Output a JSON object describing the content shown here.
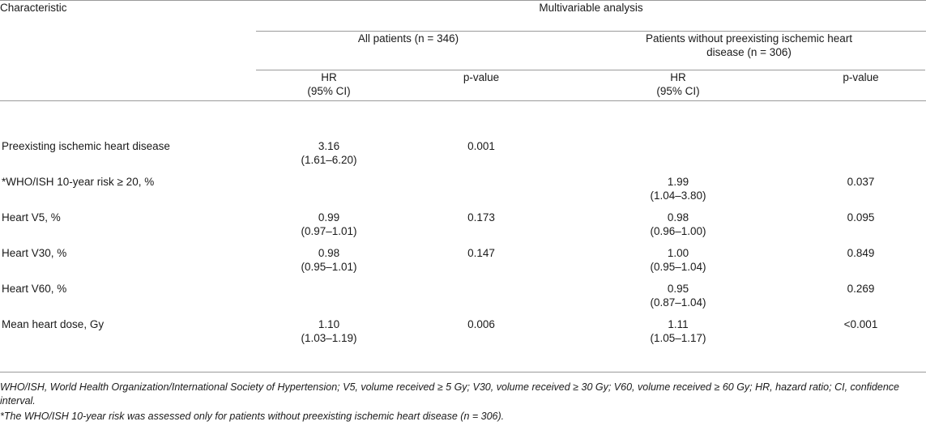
{
  "table": {
    "characteristic_header": "Characteristic",
    "multivariable_header": "Multivariable analysis",
    "group1_header": "All patients (n = 346)",
    "group2_header_line1": "Patients without preexisting ischemic heart",
    "group2_header_line2": "disease (n = 306)",
    "hr_label": "HR",
    "ci_label": "(95% CI)",
    "p_label": "p-value",
    "rows": [
      {
        "label": "Preexisting ischemic heart disease",
        "g1_hr": "3.16",
        "g1_ci": "(1.61–6.20)",
        "g1_p": "0.001",
        "g2_hr": "",
        "g2_ci": "",
        "g2_p": ""
      },
      {
        "label": "*WHO/ISH 10-year risk ≥ 20, %",
        "g1_hr": "",
        "g1_ci": "",
        "g1_p": "",
        "g2_hr": "1.99",
        "g2_ci": "(1.04–3.80)",
        "g2_p": "0.037"
      },
      {
        "label": "Heart V5, %",
        "g1_hr": "0.99",
        "g1_ci": "(0.97–1.01)",
        "g1_p": "0.173",
        "g2_hr": "0.98",
        "g2_ci": "(0.96–1.00)",
        "g2_p": "0.095"
      },
      {
        "label": "Heart V30, %",
        "g1_hr": "0.98",
        "g1_ci": "(0.95–1.01)",
        "g1_p": "0.147",
        "g2_hr": "1.00",
        "g2_ci": "(0.95–1.04)",
        "g2_p": "0.849"
      },
      {
        "label": "Heart V60, %",
        "g1_hr": "",
        "g1_ci": "",
        "g1_p": "",
        "g2_hr": "0.95",
        "g2_ci": "(0.87–1.04)",
        "g2_p": "0.269"
      },
      {
        "label": "Mean heart dose, Gy",
        "g1_hr": "1.10",
        "g1_ci": "(1.03–1.19)",
        "g1_p": "0.006",
        "g2_hr": "1.11",
        "g2_ci": "(1.05–1.17)",
        "g2_p": "<0.001"
      }
    ]
  },
  "footnotes": {
    "abbreviations": "WHO/ISH, World Health Organization/International Society of Hypertension; V5, volume received ≥ 5 Gy; V30, volume received ≥ 30 Gy; V60, volume received ≥ 60 Gy; HR, hazard ratio; CI, confidence interval.",
    "asterisk": "*The WHO/ISH 10-year risk was assessed only for patients without preexisting ischemic heart disease (n = 306)."
  }
}
